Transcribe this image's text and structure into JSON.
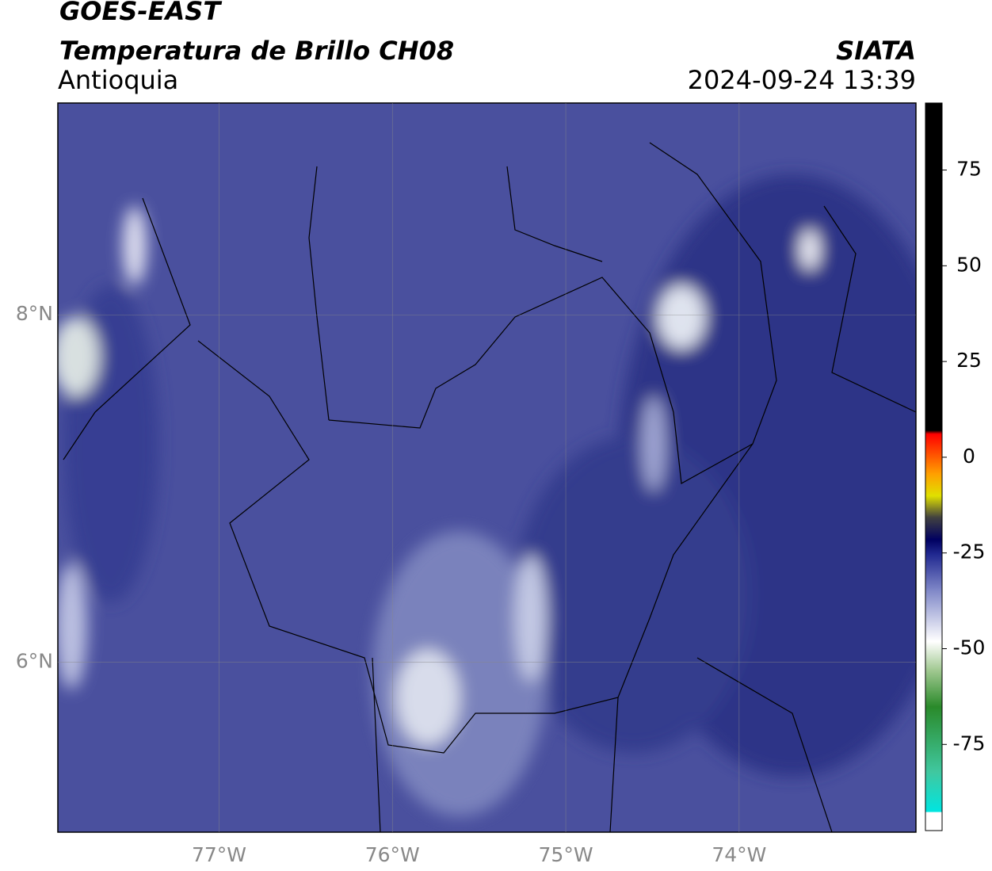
{
  "header": {
    "satellite": "GOES-EAST",
    "product": "Temperatura de Brillo CH08",
    "region": "Antioquia",
    "agency": "SIATA",
    "datetime": "2024-09-24 13:39"
  },
  "map": {
    "xlim": [
      -77.93,
      -72.98
    ],
    "ylim": [
      5.02,
      9.22
    ],
    "xticks": [
      {
        "value": -77,
        "label": "77°W"
      },
      {
        "value": -76,
        "label": "76°W"
      },
      {
        "value": -75,
        "label": "75°W"
      },
      {
        "value": -74,
        "label": "74°W"
      }
    ],
    "yticks": [
      {
        "value": 8,
        "label": "8°N"
      },
      {
        "value": 6,
        "label": "6°N"
      }
    ],
    "grid": true
  },
  "colorbar": {
    "lim": [
      -97.5,
      92.5
    ],
    "ticks": [
      75,
      50,
      25,
      0,
      -25,
      -50,
      -75
    ]
  }
}
